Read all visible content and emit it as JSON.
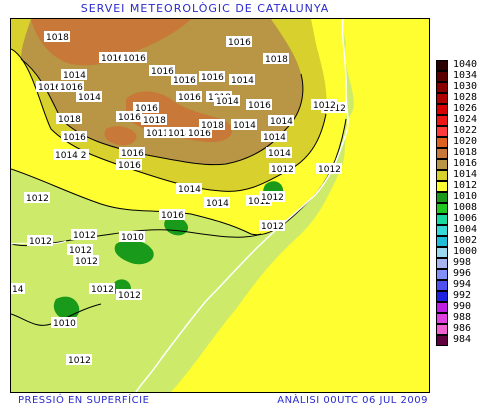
{
  "header": {
    "title": "SERVEI METEOROLÒGIC DE CATALUNYA"
  },
  "footer": {
    "left": "PRESSIÓ EN SUPERFÍCIE",
    "right": "ANÀLISI 00UTC 06 JUL 2009"
  },
  "legend": [
    {
      "label": "1040",
      "color": "#2a0000"
    },
    {
      "label": "1034",
      "color": "#5a0000"
    },
    {
      "label": "1030",
      "color": "#8a0000"
    },
    {
      "label": "1028",
      "color": "#b00000"
    },
    {
      "label": "1026",
      "color": "#d60000"
    },
    {
      "label": "1024",
      "color": "#ee1515"
    },
    {
      "label": "1022",
      "color": "#ff3a3a"
    },
    {
      "label": "1020",
      "color": "#e06020"
    },
    {
      "label": "1018",
      "color": "#c87838"
    },
    {
      "label": "1016",
      "color": "#b89645"
    },
    {
      "label": "1014",
      "color": "#d8d02c"
    },
    {
      "label": "1012",
      "color": "#fefe30"
    },
    {
      "label": "1010",
      "color": "#1a9a1a"
    },
    {
      "label": "1008",
      "color": "#22c822"
    },
    {
      "label": "1006",
      "color": "#19d8a0"
    },
    {
      "label": "1004",
      "color": "#38d8d8"
    },
    {
      "label": "1002",
      "color": "#20bcd8"
    },
    {
      "label": "1000",
      "color": "#9ad8f0"
    },
    {
      "label": "998",
      "color": "#a8b4f0"
    },
    {
      "label": "996",
      "color": "#8090f8"
    },
    {
      "label": "994",
      "color": "#5050f0"
    },
    {
      "label": "992",
      "color": "#2020e0"
    },
    {
      "label": "990",
      "color": "#c020e0"
    },
    {
      "label": "988",
      "color": "#e040e0"
    },
    {
      "label": "986",
      "color": "#f060d0"
    },
    {
      "label": "984",
      "color": "#600040"
    }
  ],
  "isobar_labels": [
    {
      "text": "1018"
    },
    {
      "text": "1016"
    },
    {
      "text": "1016"
    },
    {
      "text": "1016"
    },
    {
      "text": "1014"
    },
    {
      "text": "1016"
    },
    {
      "text": "1016"
    },
    {
      "text": "1018"
    },
    {
      "text": "1016"
    },
    {
      "text": "1016"
    },
    {
      "text": "1016"
    },
    {
      "text": "1014"
    },
    {
      "text": "1014"
    },
    {
      "text": "1016"
    },
    {
      "text": "1018"
    },
    {
      "text": "1016"
    },
    {
      "text": "1018"
    },
    {
      "text": "1016"
    },
    {
      "text": "1018"
    },
    {
      "text": "1011"
    },
    {
      "text": "1018"
    },
    {
      "text": "1016"
    },
    {
      "text": "1018"
    },
    {
      "text": "1014"
    },
    {
      "text": "1014"
    },
    {
      "text": "1016"
    },
    {
      "text": "1016"
    },
    {
      "text": "1014"
    },
    {
      "text": "1014"
    },
    {
      "text": "1012"
    },
    {
      "text": "1014 2"
    },
    {
      "text": "1016"
    },
    {
      "text": "1014"
    },
    {
      "text": "1012"
    },
    {
      "text": "1012"
    },
    {
      "text": "1012"
    },
    {
      "text": "1012"
    },
    {
      "text": "1014"
    },
    {
      "text": "1012"
    },
    {
      "text": "1016"
    },
    {
      "text": "1012"
    },
    {
      "text": "1012"
    },
    {
      "text": "1010"
    },
    {
      "text": "1012"
    },
    {
      "text": "1012"
    },
    {
      "text": "1012"
    },
    {
      "text": "14"
    },
    {
      "text": "1012"
    },
    {
      "text": "1012"
    },
    {
      "text": "1010"
    },
    {
      "text": "1012"
    },
    {
      "text": "1016"
    },
    {
      "text": "1012"
    },
    {
      "text": "1014"
    }
  ]
}
